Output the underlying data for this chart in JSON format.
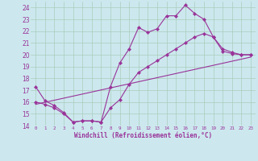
{
  "xlabel": "Windchill (Refroidissement éolien,°C)",
  "bg_color": "#cce8ee",
  "grid_color": "#aaccbb",
  "line_color": "#993399",
  "xlim": [
    -0.5,
    23.5
  ],
  "ylim": [
    14,
    24.5
  ],
  "yticks": [
    14,
    15,
    16,
    17,
    18,
    19,
    20,
    21,
    22,
    23,
    24
  ],
  "xticks": [
    0,
    1,
    2,
    3,
    4,
    5,
    6,
    7,
    8,
    9,
    10,
    11,
    12,
    13,
    14,
    15,
    16,
    17,
    18,
    19,
    20,
    21,
    22,
    23
  ],
  "line1_x": [
    0,
    1,
    2,
    3,
    4,
    5,
    6,
    7,
    8,
    9,
    10,
    11,
    12,
    13,
    14,
    15,
    16,
    17,
    18,
    19,
    20,
    21,
    22,
    23
  ],
  "line1_y": [
    17.3,
    16.1,
    15.7,
    15.1,
    14.3,
    14.4,
    14.4,
    14.3,
    17.3,
    19.3,
    20.5,
    22.3,
    21.9,
    22.2,
    23.3,
    23.3,
    24.2,
    23.5,
    23.0,
    21.5,
    20.3,
    20.1,
    20.0,
    20.0
  ],
  "line2_x": [
    0,
    1,
    2,
    3,
    4,
    5,
    6,
    7,
    8,
    9,
    10,
    11,
    12,
    13,
    14,
    15,
    16,
    17,
    18,
    19,
    20,
    21,
    22,
    23
  ],
  "line2_y": [
    16.0,
    15.8,
    15.5,
    15.0,
    14.3,
    14.4,
    14.4,
    14.3,
    15.5,
    16.2,
    17.5,
    18.5,
    19.0,
    19.5,
    20.0,
    20.5,
    21.0,
    21.5,
    21.8,
    21.5,
    20.5,
    20.2,
    20.0,
    20.0
  ],
  "line3_x": [
    0,
    23
  ],
  "line3_y": [
    15.8,
    19.8
  ]
}
